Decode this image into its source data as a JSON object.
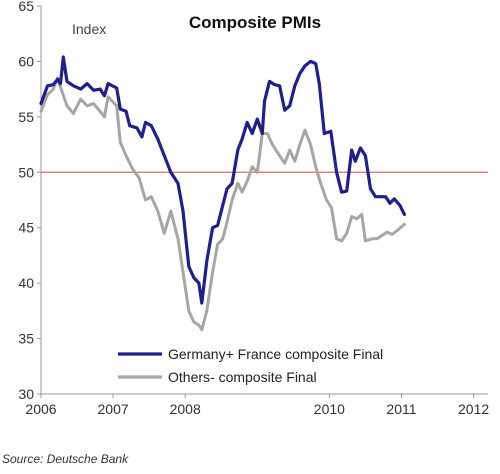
{
  "chart_data": {
    "type": "line",
    "title": "Composite PMIs",
    "unit_label": "Index",
    "source": "Source: Deutsche Bank",
    "xlim": [
      2006.0,
      2012.2
    ],
    "ylim": [
      30,
      65
    ],
    "x_ticks": [
      2006,
      2007,
      2008,
      2010,
      2011,
      2012
    ],
    "x_tick_labels": [
      "2006",
      "2007",
      "2008",
      "2010",
      "2011",
      "2012"
    ],
    "y_ticks": [
      30,
      35,
      40,
      45,
      50,
      55,
      60,
      65
    ],
    "reference_line": {
      "y": 50,
      "color": "#e06666"
    },
    "legend_position": "bottom-center",
    "grid": false,
    "series": [
      {
        "name": "Germany+ France composite Final",
        "color": "#1f1f8f",
        "points": [
          [
            2006.0,
            56.2
          ],
          [
            2006.09,
            57.8
          ],
          [
            2006.17,
            57.9
          ],
          [
            2006.23,
            58.4
          ],
          [
            2006.27,
            58.0
          ],
          [
            2006.31,
            60.4
          ],
          [
            2006.36,
            58.2
          ],
          [
            2006.45,
            57.8
          ],
          [
            2006.55,
            57.5
          ],
          [
            2006.64,
            58.0
          ],
          [
            2006.73,
            57.4
          ],
          [
            2006.82,
            57.5
          ],
          [
            2006.88,
            56.9
          ],
          [
            2006.93,
            58.0
          ],
          [
            2007.05,
            57.6
          ],
          [
            2007.1,
            55.7
          ],
          [
            2007.18,
            55.5
          ],
          [
            2007.23,
            54.2
          ],
          [
            2007.33,
            54.0
          ],
          [
            2007.4,
            53.2
          ],
          [
            2007.45,
            54.5
          ],
          [
            2007.53,
            54.2
          ],
          [
            2007.62,
            53.0
          ],
          [
            2007.71,
            51.5
          ],
          [
            2007.8,
            50.0
          ],
          [
            2007.9,
            49.0
          ],
          [
            2007.97,
            46.5
          ],
          [
            2008.05,
            41.5
          ],
          [
            2008.12,
            40.5
          ],
          [
            2008.19,
            40.0
          ],
          [
            2008.23,
            38.2
          ],
          [
            2008.3,
            42.0
          ],
          [
            2008.38,
            45.0
          ],
          [
            2008.45,
            45.2
          ],
          [
            2008.52,
            47.0
          ],
          [
            2008.58,
            48.5
          ],
          [
            2008.65,
            49.0
          ],
          [
            2008.73,
            52.0
          ],
          [
            2008.79,
            53.0
          ],
          [
            2008.86,
            54.5
          ],
          [
            2008.93,
            53.5
          ],
          [
            2009.0,
            54.8
          ],
          [
            2009.07,
            53.5
          ],
          [
            2009.1,
            56.4
          ],
          [
            2009.17,
            58.2
          ],
          [
            2009.24,
            57.9
          ],
          [
            2009.31,
            57.8
          ],
          [
            2009.38,
            55.6
          ],
          [
            2009.45,
            56.0
          ],
          [
            2009.52,
            57.8
          ],
          [
            2009.59,
            58.9
          ],
          [
            2009.66,
            59.6
          ],
          [
            2009.74,
            60.0
          ],
          [
            2009.81,
            59.8
          ],
          [
            2009.86,
            58.0
          ],
          [
            2009.93,
            53.5
          ],
          [
            2010.02,
            53.7
          ],
          [
            2010.1,
            50.0
          ],
          [
            2010.17,
            48.2
          ],
          [
            2010.24,
            48.3
          ],
          [
            2010.31,
            52.0
          ],
          [
            2010.36,
            51.0
          ],
          [
            2010.43,
            52.2
          ],
          [
            2010.5,
            51.5
          ],
          [
            2010.57,
            48.5
          ],
          [
            2010.64,
            47.8
          ],
          [
            2010.71,
            47.8
          ],
          [
            2010.78,
            47.8
          ],
          [
            2010.84,
            47.2
          ],
          [
            2010.9,
            47.6
          ],
          [
            2010.98,
            47.0
          ],
          [
            2011.04,
            46.2
          ]
        ]
      },
      {
        "name": "Others- composite  Final",
        "color": "#a6a6a6",
        "points": [
          [
            2006.0,
            55.5
          ],
          [
            2006.09,
            57.0
          ],
          [
            2006.17,
            57.5
          ],
          [
            2006.23,
            58.5
          ],
          [
            2006.28,
            57.5
          ],
          [
            2006.36,
            56.0
          ],
          [
            2006.45,
            55.3
          ],
          [
            2006.55,
            56.6
          ],
          [
            2006.64,
            56.0
          ],
          [
            2006.73,
            56.2
          ],
          [
            2006.82,
            55.5
          ],
          [
            2006.88,
            55.0
          ],
          [
            2006.93,
            56.8
          ],
          [
            2007.05,
            56.0
          ],
          [
            2007.1,
            52.7
          ],
          [
            2007.18,
            51.5
          ],
          [
            2007.27,
            50.3
          ],
          [
            2007.36,
            49.5
          ],
          [
            2007.45,
            47.5
          ],
          [
            2007.53,
            47.8
          ],
          [
            2007.62,
            46.5
          ],
          [
            2007.71,
            44.5
          ],
          [
            2007.8,
            46.5
          ],
          [
            2007.9,
            44.0
          ],
          [
            2007.97,
            41.0
          ],
          [
            2008.05,
            37.5
          ],
          [
            2008.12,
            36.5
          ],
          [
            2008.19,
            36.2
          ],
          [
            2008.23,
            35.8
          ],
          [
            2008.3,
            37.5
          ],
          [
            2008.38,
            41.0
          ],
          [
            2008.45,
            43.5
          ],
          [
            2008.52,
            44.0
          ],
          [
            2008.58,
            45.5
          ],
          [
            2008.65,
            47.5
          ],
          [
            2008.73,
            49.0
          ],
          [
            2008.79,
            48.2
          ],
          [
            2008.86,
            49.2
          ],
          [
            2008.93,
            50.5
          ],
          [
            2009.0,
            50.0
          ],
          [
            2009.07,
            53.5
          ],
          [
            2009.14,
            53.5
          ],
          [
            2009.21,
            52.5
          ],
          [
            2009.31,
            51.5
          ],
          [
            2009.38,
            50.8
          ],
          [
            2009.45,
            52.0
          ],
          [
            2009.52,
            51.0
          ],
          [
            2009.59,
            52.5
          ],
          [
            2009.66,
            53.8
          ],
          [
            2009.74,
            52.5
          ],
          [
            2009.81,
            50.5
          ],
          [
            2009.88,
            49.0
          ],
          [
            2009.96,
            47.5
          ],
          [
            2010.03,
            46.8
          ],
          [
            2010.1,
            44.0
          ],
          [
            2010.17,
            43.8
          ],
          [
            2010.24,
            44.5
          ],
          [
            2010.31,
            46.0
          ],
          [
            2010.38,
            45.8
          ],
          [
            2010.45,
            46.2
          ],
          [
            2010.5,
            43.8
          ],
          [
            2010.59,
            44.0
          ],
          [
            2010.66,
            44.0
          ],
          [
            2010.73,
            44.3
          ],
          [
            2010.8,
            44.6
          ],
          [
            2010.87,
            44.4
          ],
          [
            2010.95,
            44.8
          ],
          [
            2011.04,
            45.3
          ]
        ]
      }
    ]
  }
}
